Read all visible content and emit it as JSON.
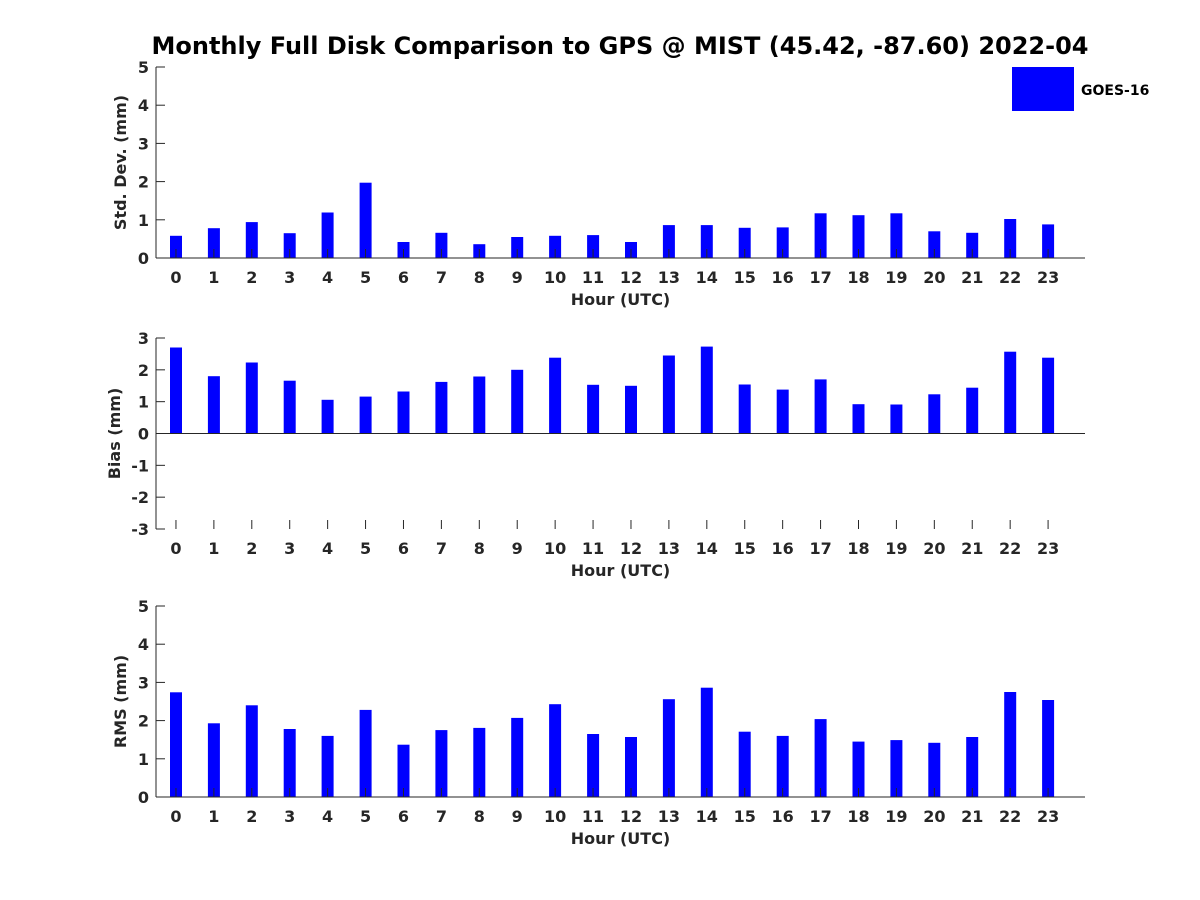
{
  "title": "Monthly Full Disk Comparison to GPS @ MIST (45.42, -87.60) 2022-04",
  "colors": {
    "bar": "#0000FF",
    "axis": "#262626",
    "background": "#FFFFFF"
  },
  "legend": {
    "label": "GOES-16",
    "placement": "top-right"
  },
  "chart_data": [
    {
      "type": "bar",
      "series": [
        {
          "name": "GOES-16",
          "values": [
            0.58,
            0.78,
            0.94,
            0.65,
            1.19,
            1.97,
            0.42,
            0.66,
            0.36,
            0.55,
            0.58,
            0.6,
            0.42,
            0.86,
            0.86,
            0.79,
            0.8,
            1.17,
            1.12,
            1.17,
            0.7,
            0.66,
            1.02,
            0.88
          ]
        }
      ],
      "categories": [
        "0",
        "1",
        "2",
        "3",
        "4",
        "5",
        "6",
        "7",
        "8",
        "9",
        "10",
        "11",
        "12",
        "13",
        "14",
        "15",
        "16",
        "17",
        "18",
        "19",
        "20",
        "21",
        "22",
        "23"
      ],
      "xlabel": "Hour (UTC)",
      "ylabel": "Std. Dev. (mm)",
      "ylim": [
        0,
        5
      ],
      "yticks": [
        "0",
        "1",
        "2",
        "3",
        "4",
        "5"
      ]
    },
    {
      "type": "bar",
      "series": [
        {
          "name": "GOES-16",
          "values": [
            2.7,
            1.8,
            2.23,
            1.66,
            1.06,
            1.16,
            1.32,
            1.62,
            1.79,
            2.0,
            2.38,
            1.53,
            1.5,
            2.45,
            2.73,
            1.54,
            1.38,
            1.7,
            0.92,
            0.91,
            1.23,
            1.44,
            2.57,
            2.38
          ]
        }
      ],
      "categories": [
        "0",
        "1",
        "2",
        "3",
        "4",
        "5",
        "6",
        "7",
        "8",
        "9",
        "10",
        "11",
        "12",
        "13",
        "14",
        "15",
        "16",
        "17",
        "18",
        "19",
        "20",
        "21",
        "22",
        "23"
      ],
      "xlabel": "Hour (UTC)",
      "ylabel": "Bias (mm)",
      "ylim": [
        -3,
        3
      ],
      "yticks": [
        "-3",
        "-2",
        "-1",
        "0",
        "1",
        "2",
        "3"
      ]
    },
    {
      "type": "bar",
      "series": [
        {
          "name": "GOES-16",
          "values": [
            2.74,
            1.93,
            2.4,
            1.78,
            1.6,
            2.28,
            1.37,
            1.75,
            1.81,
            2.07,
            2.43,
            1.65,
            1.57,
            2.56,
            2.86,
            1.71,
            1.6,
            2.04,
            1.45,
            1.49,
            1.42,
            1.57,
            2.75,
            2.54
          ]
        }
      ],
      "categories": [
        "0",
        "1",
        "2",
        "3",
        "4",
        "5",
        "6",
        "7",
        "8",
        "9",
        "10",
        "11",
        "12",
        "13",
        "14",
        "15",
        "16",
        "17",
        "18",
        "19",
        "20",
        "21",
        "22",
        "23"
      ],
      "xlabel": "Hour (UTC)",
      "ylabel": "RMS (mm)",
      "ylim": [
        0,
        5
      ],
      "yticks": [
        "0",
        "1",
        "2",
        "3",
        "4",
        "5"
      ]
    }
  ]
}
